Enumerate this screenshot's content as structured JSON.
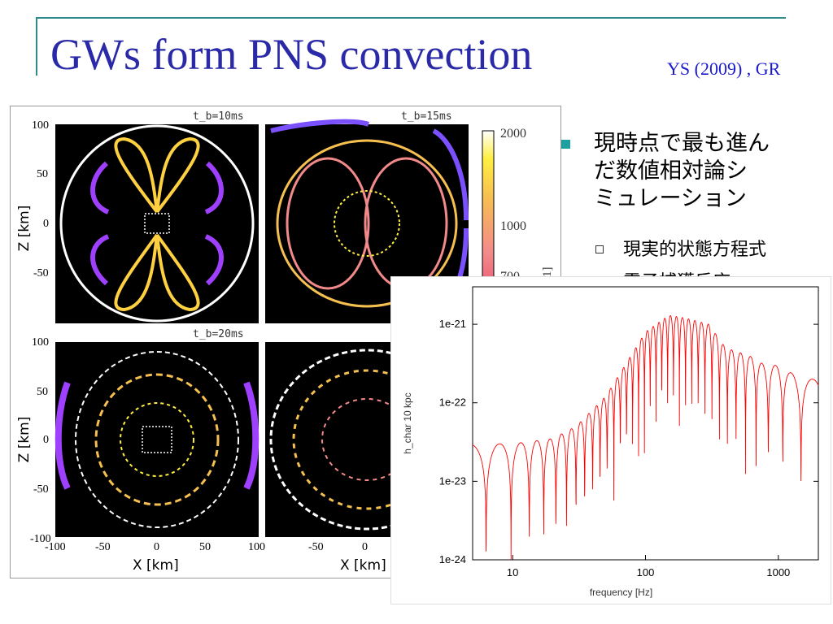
{
  "slide": {
    "title": "GWs form PNS convection",
    "reference": "YS (2009) , GR",
    "colors": {
      "title": "#2a2aa8",
      "reference": "#1a1acc",
      "rule": "#2e8b8b",
      "bullet": "#1ea0a0",
      "spectrum": "#ff0000"
    }
  },
  "bullets": [
    {
      "text": "現時点で最も進んだ数値相対論シミュレーション",
      "lines": [
        "現時点で最も進ん",
        "だ数値相対論シ",
        "ミュレーション"
      ],
      "sub": [
        "現実的状態方程式",
        "電子捕獲反応"
      ]
    }
  ],
  "left_figure": {
    "panels": [
      {
        "time_label": "t_b=10ms"
      },
      {
        "time_label": "t_b=15ms"
      },
      {
        "time_label": "t_b=20ms"
      },
      {
        "time_label": ""
      }
    ],
    "y_ticks_top": [
      "100",
      "50",
      "0",
      "-50"
    ],
    "y_ticks_bottom": [
      "100",
      "50",
      "0",
      "-50",
      "-100"
    ],
    "x_ticks_left": [
      "-100",
      "-50",
      "0",
      "50",
      "100"
    ],
    "x_ticks_right": [
      "-50",
      "0"
    ],
    "y_label": "Z [km]",
    "x_label": "X [km]",
    "colorbar_ticks": [
      "2000",
      "1000",
      "700"
    ],
    "colorbar_unit_fragment": "1]"
  },
  "chart_data": {
    "type": "line",
    "title": "",
    "xlabel": "frequency [Hz]",
    "ylabel": "h_char 10 kpc",
    "xscale": "log",
    "yscale": "log",
    "xlim": [
      5,
      2000
    ],
    "ylim": [
      1e-24,
      3e-21
    ],
    "x_ticks": [
      "10",
      "100",
      "1000"
    ],
    "y_ticks": [
      "1e-21",
      "1e-22",
      "1e-23",
      "1e-24"
    ],
    "series": [
      {
        "name": "",
        "x": [
          5,
          10,
          20,
          30,
          50,
          70,
          100,
          150,
          200,
          300,
          400,
          600,
          800,
          1000,
          1500,
          2000
        ],
        "y": [
          3e-23,
          3e-23,
          3.5e-23,
          5e-23,
          1.2e-22,
          3e-22,
          8e-22,
          1.3e-21,
          1.2e-21,
          1e-21,
          5e-22,
          4e-22,
          3e-22,
          3e-22,
          2e-22,
          2e-22
        ]
      }
    ]
  }
}
